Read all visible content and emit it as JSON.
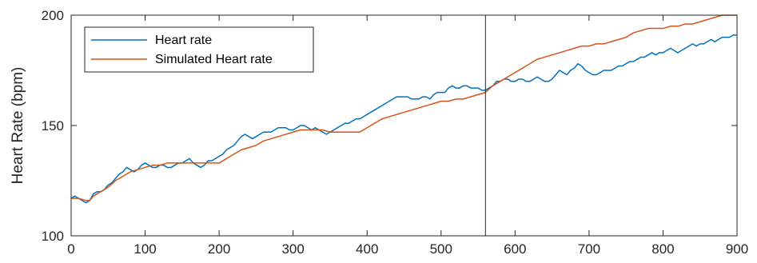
{
  "chart_data": {
    "type": "line",
    "title": "",
    "xlabel": "",
    "ylabel": "Heart Rate (bpm)",
    "xlim": [
      0,
      900
    ],
    "ylim": [
      100,
      200
    ],
    "grid": false,
    "legend_position": "top-left",
    "x_ticks": [
      {
        "value": 0,
        "label": "0"
      },
      {
        "value": 100,
        "label": "100"
      },
      {
        "value": 200,
        "label": "200"
      },
      {
        "value": 300,
        "label": "300"
      },
      {
        "value": 400,
        "label": "400"
      },
      {
        "value": 500,
        "label": "500"
      },
      {
        "value": 600,
        "label": "600"
      },
      {
        "value": 700,
        "label": "700"
      },
      {
        "value": 800,
        "label": "800"
      },
      {
        "value": 900,
        "label": "900"
      }
    ],
    "y_ticks": [
      {
        "value": 100,
        "label": "100"
      },
      {
        "value": 150,
        "label": "150"
      },
      {
        "value": 200,
        "label": "200"
      }
    ],
    "vertical_line_x": 560,
    "series": [
      {
        "name": "Heart rate",
        "color": "#0072BD",
        "points": [
          [
            0,
            117
          ],
          [
            5,
            118
          ],
          [
            10,
            117
          ],
          [
            15,
            116
          ],
          [
            20,
            115
          ],
          [
            25,
            116
          ],
          [
            30,
            119
          ],
          [
            35,
            120
          ],
          [
            40,
            120
          ],
          [
            45,
            121
          ],
          [
            50,
            123
          ],
          [
            55,
            124
          ],
          [
            60,
            126
          ],
          [
            65,
            128
          ],
          [
            70,
            129
          ],
          [
            75,
            131
          ],
          [
            80,
            130
          ],
          [
            85,
            129
          ],
          [
            90,
            130
          ],
          [
            95,
            132
          ],
          [
            100,
            133
          ],
          [
            105,
            132
          ],
          [
            110,
            131
          ],
          [
            115,
            131
          ],
          [
            120,
            132
          ],
          [
            125,
            132
          ],
          [
            130,
            131
          ],
          [
            135,
            131
          ],
          [
            140,
            132
          ],
          [
            145,
            133
          ],
          [
            150,
            133
          ],
          [
            155,
            134
          ],
          [
            160,
            135
          ],
          [
            165,
            133
          ],
          [
            170,
            132
          ],
          [
            175,
            131
          ],
          [
            180,
            132
          ],
          [
            185,
            134
          ],
          [
            190,
            134
          ],
          [
            195,
            135
          ],
          [
            200,
            136
          ],
          [
            205,
            137
          ],
          [
            210,
            139
          ],
          [
            215,
            140
          ],
          [
            220,
            141
          ],
          [
            225,
            143
          ],
          [
            230,
            145
          ],
          [
            235,
            146
          ],
          [
            240,
            145
          ],
          [
            245,
            144
          ],
          [
            250,
            145
          ],
          [
            255,
            146
          ],
          [
            260,
            147
          ],
          [
            265,
            147
          ],
          [
            270,
            147
          ],
          [
            275,
            148
          ],
          [
            280,
            149
          ],
          [
            285,
            149
          ],
          [
            290,
            149
          ],
          [
            295,
            148
          ],
          [
            300,
            148
          ],
          [
            305,
            149
          ],
          [
            310,
            150
          ],
          [
            315,
            150
          ],
          [
            320,
            149
          ],
          [
            325,
            148
          ],
          [
            330,
            149
          ],
          [
            335,
            148
          ],
          [
            340,
            147
          ],
          [
            345,
            146
          ],
          [
            350,
            147
          ],
          [
            355,
            148
          ],
          [
            360,
            149
          ],
          [
            365,
            150
          ],
          [
            370,
            151
          ],
          [
            375,
            151
          ],
          [
            380,
            152
          ],
          [
            385,
            153
          ],
          [
            390,
            153
          ],
          [
            395,
            154
          ],
          [
            400,
            155
          ],
          [
            405,
            156
          ],
          [
            410,
            157
          ],
          [
            415,
            158
          ],
          [
            420,
            159
          ],
          [
            425,
            160
          ],
          [
            430,
            161
          ],
          [
            435,
            162
          ],
          [
            440,
            163
          ],
          [
            445,
            163
          ],
          [
            450,
            163
          ],
          [
            455,
            163
          ],
          [
            460,
            162
          ],
          [
            465,
            162
          ],
          [
            470,
            162
          ],
          [
            475,
            163
          ],
          [
            480,
            163
          ],
          [
            485,
            162
          ],
          [
            490,
            164
          ],
          [
            495,
            165
          ],
          [
            500,
            165
          ],
          [
            505,
            165
          ],
          [
            510,
            167
          ],
          [
            515,
            168
          ],
          [
            520,
            167
          ],
          [
            525,
            167
          ],
          [
            530,
            168
          ],
          [
            535,
            168
          ],
          [
            540,
            167
          ],
          [
            545,
            167
          ],
          [
            550,
            167
          ],
          [
            555,
            166
          ],
          [
            560,
            166
          ],
          [
            565,
            167
          ],
          [
            570,
            168
          ],
          [
            575,
            170
          ],
          [
            580,
            170
          ],
          [
            585,
            171
          ],
          [
            590,
            171
          ],
          [
            595,
            170
          ],
          [
            600,
            170
          ],
          [
            605,
            171
          ],
          [
            610,
            171
          ],
          [
            615,
            170
          ],
          [
            620,
            170
          ],
          [
            625,
            171
          ],
          [
            630,
            172
          ],
          [
            635,
            171
          ],
          [
            640,
            170
          ],
          [
            645,
            170
          ],
          [
            650,
            171
          ],
          [
            655,
            173
          ],
          [
            660,
            175
          ],
          [
            665,
            174
          ],
          [
            670,
            173
          ],
          [
            675,
            175
          ],
          [
            680,
            176
          ],
          [
            685,
            178
          ],
          [
            690,
            177
          ],
          [
            695,
            175
          ],
          [
            700,
            174
          ],
          [
            705,
            173
          ],
          [
            710,
            173
          ],
          [
            715,
            174
          ],
          [
            720,
            175
          ],
          [
            725,
            175
          ],
          [
            730,
            175
          ],
          [
            735,
            176
          ],
          [
            740,
            177
          ],
          [
            745,
            177
          ],
          [
            750,
            178
          ],
          [
            755,
            179
          ],
          [
            760,
            179
          ],
          [
            765,
            180
          ],
          [
            770,
            181
          ],
          [
            775,
            181
          ],
          [
            780,
            182
          ],
          [
            785,
            183
          ],
          [
            790,
            182
          ],
          [
            795,
            183
          ],
          [
            800,
            183
          ],
          [
            805,
            184
          ],
          [
            810,
            185
          ],
          [
            815,
            184
          ],
          [
            820,
            183
          ],
          [
            825,
            184
          ],
          [
            830,
            185
          ],
          [
            835,
            186
          ],
          [
            840,
            187
          ],
          [
            845,
            186
          ],
          [
            850,
            187
          ],
          [
            855,
            187
          ],
          [
            860,
            188
          ],
          [
            865,
            189
          ],
          [
            870,
            188
          ],
          [
            875,
            189
          ],
          [
            880,
            190
          ],
          [
            885,
            190
          ],
          [
            890,
            190
          ],
          [
            895,
            191
          ],
          [
            900,
            191
          ]
        ]
      },
      {
        "name": "Simulated Heart rate",
        "color": "#D95319",
        "points": [
          [
            0,
            117
          ],
          [
            10,
            117
          ],
          [
            20,
            116
          ],
          [
            25,
            116
          ],
          [
            30,
            118
          ],
          [
            40,
            120
          ],
          [
            50,
            122
          ],
          [
            60,
            125
          ],
          [
            70,
            127
          ],
          [
            80,
            129
          ],
          [
            90,
            130
          ],
          [
            100,
            131
          ],
          [
            110,
            132
          ],
          [
            120,
            132
          ],
          [
            130,
            133
          ],
          [
            140,
            133
          ],
          [
            150,
            133
          ],
          [
            160,
            133
          ],
          [
            170,
            133
          ],
          [
            180,
            133
          ],
          [
            190,
            133
          ],
          [
            200,
            133
          ],
          [
            210,
            135
          ],
          [
            220,
            137
          ],
          [
            230,
            139
          ],
          [
            240,
            140
          ],
          [
            250,
            141
          ],
          [
            260,
            143
          ],
          [
            270,
            144
          ],
          [
            280,
            145
          ],
          [
            290,
            146
          ],
          [
            300,
            147
          ],
          [
            310,
            148
          ],
          [
            320,
            148
          ],
          [
            330,
            148
          ],
          [
            340,
            148
          ],
          [
            350,
            147
          ],
          [
            360,
            147
          ],
          [
            370,
            147
          ],
          [
            380,
            147
          ],
          [
            390,
            147
          ],
          [
            400,
            149
          ],
          [
            410,
            151
          ],
          [
            420,
            153
          ],
          [
            430,
            154
          ],
          [
            440,
            155
          ],
          [
            450,
            156
          ],
          [
            460,
            157
          ],
          [
            470,
            158
          ],
          [
            480,
            159
          ],
          [
            490,
            160
          ],
          [
            500,
            161
          ],
          [
            510,
            161
          ],
          [
            520,
            162
          ],
          [
            530,
            162
          ],
          [
            540,
            163
          ],
          [
            550,
            164
          ],
          [
            560,
            165
          ],
          [
            570,
            168
          ],
          [
            580,
            170
          ],
          [
            590,
            172
          ],
          [
            600,
            174
          ],
          [
            610,
            176
          ],
          [
            620,
            178
          ],
          [
            630,
            180
          ],
          [
            640,
            181
          ],
          [
            650,
            182
          ],
          [
            660,
            183
          ],
          [
            670,
            184
          ],
          [
            680,
            185
          ],
          [
            690,
            186
          ],
          [
            700,
            186
          ],
          [
            710,
            187
          ],
          [
            720,
            187
          ],
          [
            730,
            188
          ],
          [
            740,
            189
          ],
          [
            750,
            190
          ],
          [
            760,
            192
          ],
          [
            770,
            193
          ],
          [
            780,
            194
          ],
          [
            790,
            194
          ],
          [
            800,
            194
          ],
          [
            810,
            195
          ],
          [
            820,
            195
          ],
          [
            830,
            196
          ],
          [
            840,
            196
          ],
          [
            850,
            197
          ],
          [
            860,
            198
          ],
          [
            870,
            199
          ],
          [
            880,
            200
          ],
          [
            890,
            200
          ],
          [
            900,
            200
          ]
        ]
      }
    ]
  }
}
